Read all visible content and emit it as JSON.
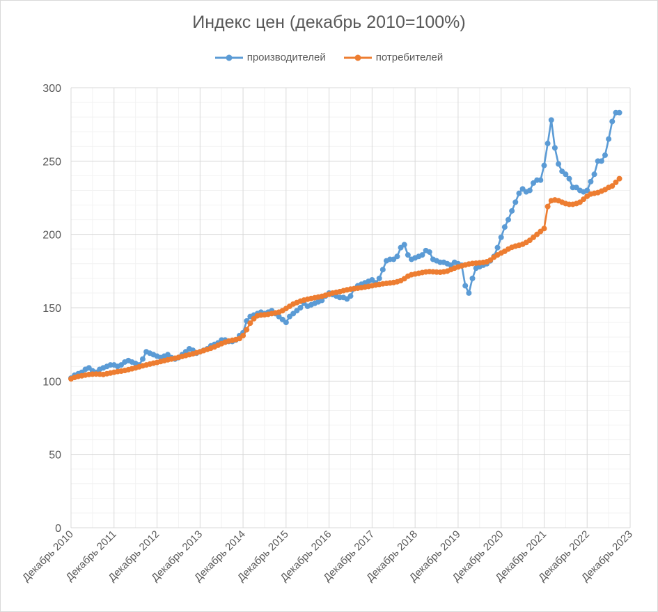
{
  "chart_data": {
    "type": "line",
    "title": "Индекс цен (декабрь 2010=100%)",
    "xlabel": "",
    "ylabel": "",
    "ylim": [
      0,
      300
    ],
    "yticks": [
      0,
      50,
      100,
      150,
      200,
      250,
      300
    ],
    "x_start": "Декабрь 2010",
    "x_end": "Декабрь 2023",
    "x_tick_labels": [
      "Декабрь 2010",
      "Декабрь 2011",
      "Декабрь 2012",
      "Декабрь 2013",
      "Декабрь 2014",
      "Декабрь 2015",
      "Декабрь 2016",
      "Декабрь 2017",
      "Декабрь 2018",
      "Декабрь 2019",
      "Декабрь 2020",
      "Декабрь 2021",
      "Декабрь 2022",
      "Декабрь 2023"
    ],
    "grid": true,
    "legend_position": "top",
    "series": [
      {
        "name": "производителей",
        "color": "#5b9bd5",
        "values": [
          102,
          104,
          105,
          106,
          108,
          109,
          107,
          106,
          108,
          109,
          110,
          111,
          111,
          110,
          111,
          113,
          114,
          113,
          112,
          111,
          115,
          120,
          119,
          118,
          117,
          116,
          117,
          118,
          116,
          115,
          116,
          118,
          120,
          122,
          121,
          119,
          120,
          121,
          122,
          124,
          125,
          126,
          128,
          128,
          127,
          127,
          128,
          131,
          133,
          141,
          144,
          145,
          146,
          147,
          146,
          147,
          148,
          146,
          144,
          142,
          140,
          144,
          146,
          148,
          150,
          153,
          151,
          152,
          153,
          154,
          155,
          158,
          160,
          159,
          158,
          157,
          157,
          156,
          158,
          163,
          165,
          166,
          167,
          168,
          169,
          167,
          170,
          176,
          182,
          183,
          183,
          185,
          191,
          193,
          186,
          183,
          184,
          185,
          186,
          189,
          188,
          183,
          182,
          181,
          181,
          180,
          179,
          181,
          180,
          179,
          165,
          160,
          170,
          177,
          178,
          179,
          180,
          182,
          185,
          191,
          198,
          205,
          210,
          216,
          222,
          228,
          231,
          229,
          230,
          235,
          237,
          237,
          247,
          262,
          278,
          259,
          248,
          243,
          241,
          238,
          232,
          232,
          230,
          229,
          230,
          236,
          241,
          250,
          250,
          254,
          265,
          277,
          283,
          283
        ]
      },
      {
        "name": "потребителей",
        "color": "#ed7d31",
        "values": [
          101.5,
          102.5,
          103.2,
          103.6,
          104.1,
          104.5,
          104.7,
          104.8,
          104.7,
          104.5,
          105.0,
          105.5,
          106.0,
          106.5,
          106.8,
          107.2,
          107.8,
          108.4,
          109.0,
          109.7,
          110.4,
          111.0,
          111.6,
          112.2,
          112.7,
          113.3,
          113.9,
          114.5,
          115.0,
          115.6,
          116.2,
          116.8,
          117.4,
          118.0,
          118.6,
          119.3,
          120.0,
          120.8,
          121.6,
          122.4,
          123.3,
          124.4,
          125.5,
          126.5,
          127.3,
          127.8,
          128.3,
          129.0,
          131.0,
          135.0,
          139.5,
          142.5,
          144.5,
          145.0,
          145.2,
          145.5,
          146.0,
          146.5,
          147.0,
          148.0,
          149.5,
          151.0,
          152.5,
          153.5,
          154.5,
          155.2,
          155.8,
          156.3,
          156.8,
          157.3,
          157.8,
          158.5,
          159.2,
          160.0,
          160.5,
          161.0,
          161.6,
          162.2,
          162.7,
          163.0,
          163.3,
          163.7,
          164.1,
          164.5,
          165.0,
          165.5,
          165.9,
          166.3,
          166.6,
          166.9,
          167.2,
          167.7,
          168.5,
          169.8,
          171.5,
          172.5,
          173.0,
          173.5,
          174.0,
          174.4,
          174.6,
          174.5,
          174.3,
          174.2,
          174.5,
          175.0,
          176.0,
          177.0,
          177.8,
          178.5,
          179.2,
          179.8,
          180.2,
          180.4,
          180.6,
          180.9,
          181.3,
          182.5,
          184.5,
          186.0,
          187.3,
          188.5,
          190.0,
          191.2,
          192.0,
          192.6,
          193.3,
          194.5,
          196.0,
          198.0,
          200.0,
          202.0,
          204.0,
          219.0,
          223.0,
          223.5,
          223.0,
          222.0,
          221.0,
          220.5,
          220.5,
          221.0,
          222.0,
          224.0,
          226.0,
          227.5,
          228.0,
          228.5,
          229.5,
          230.5,
          232.0,
          233.0,
          235.5,
          238.0
        ]
      }
    ]
  }
}
